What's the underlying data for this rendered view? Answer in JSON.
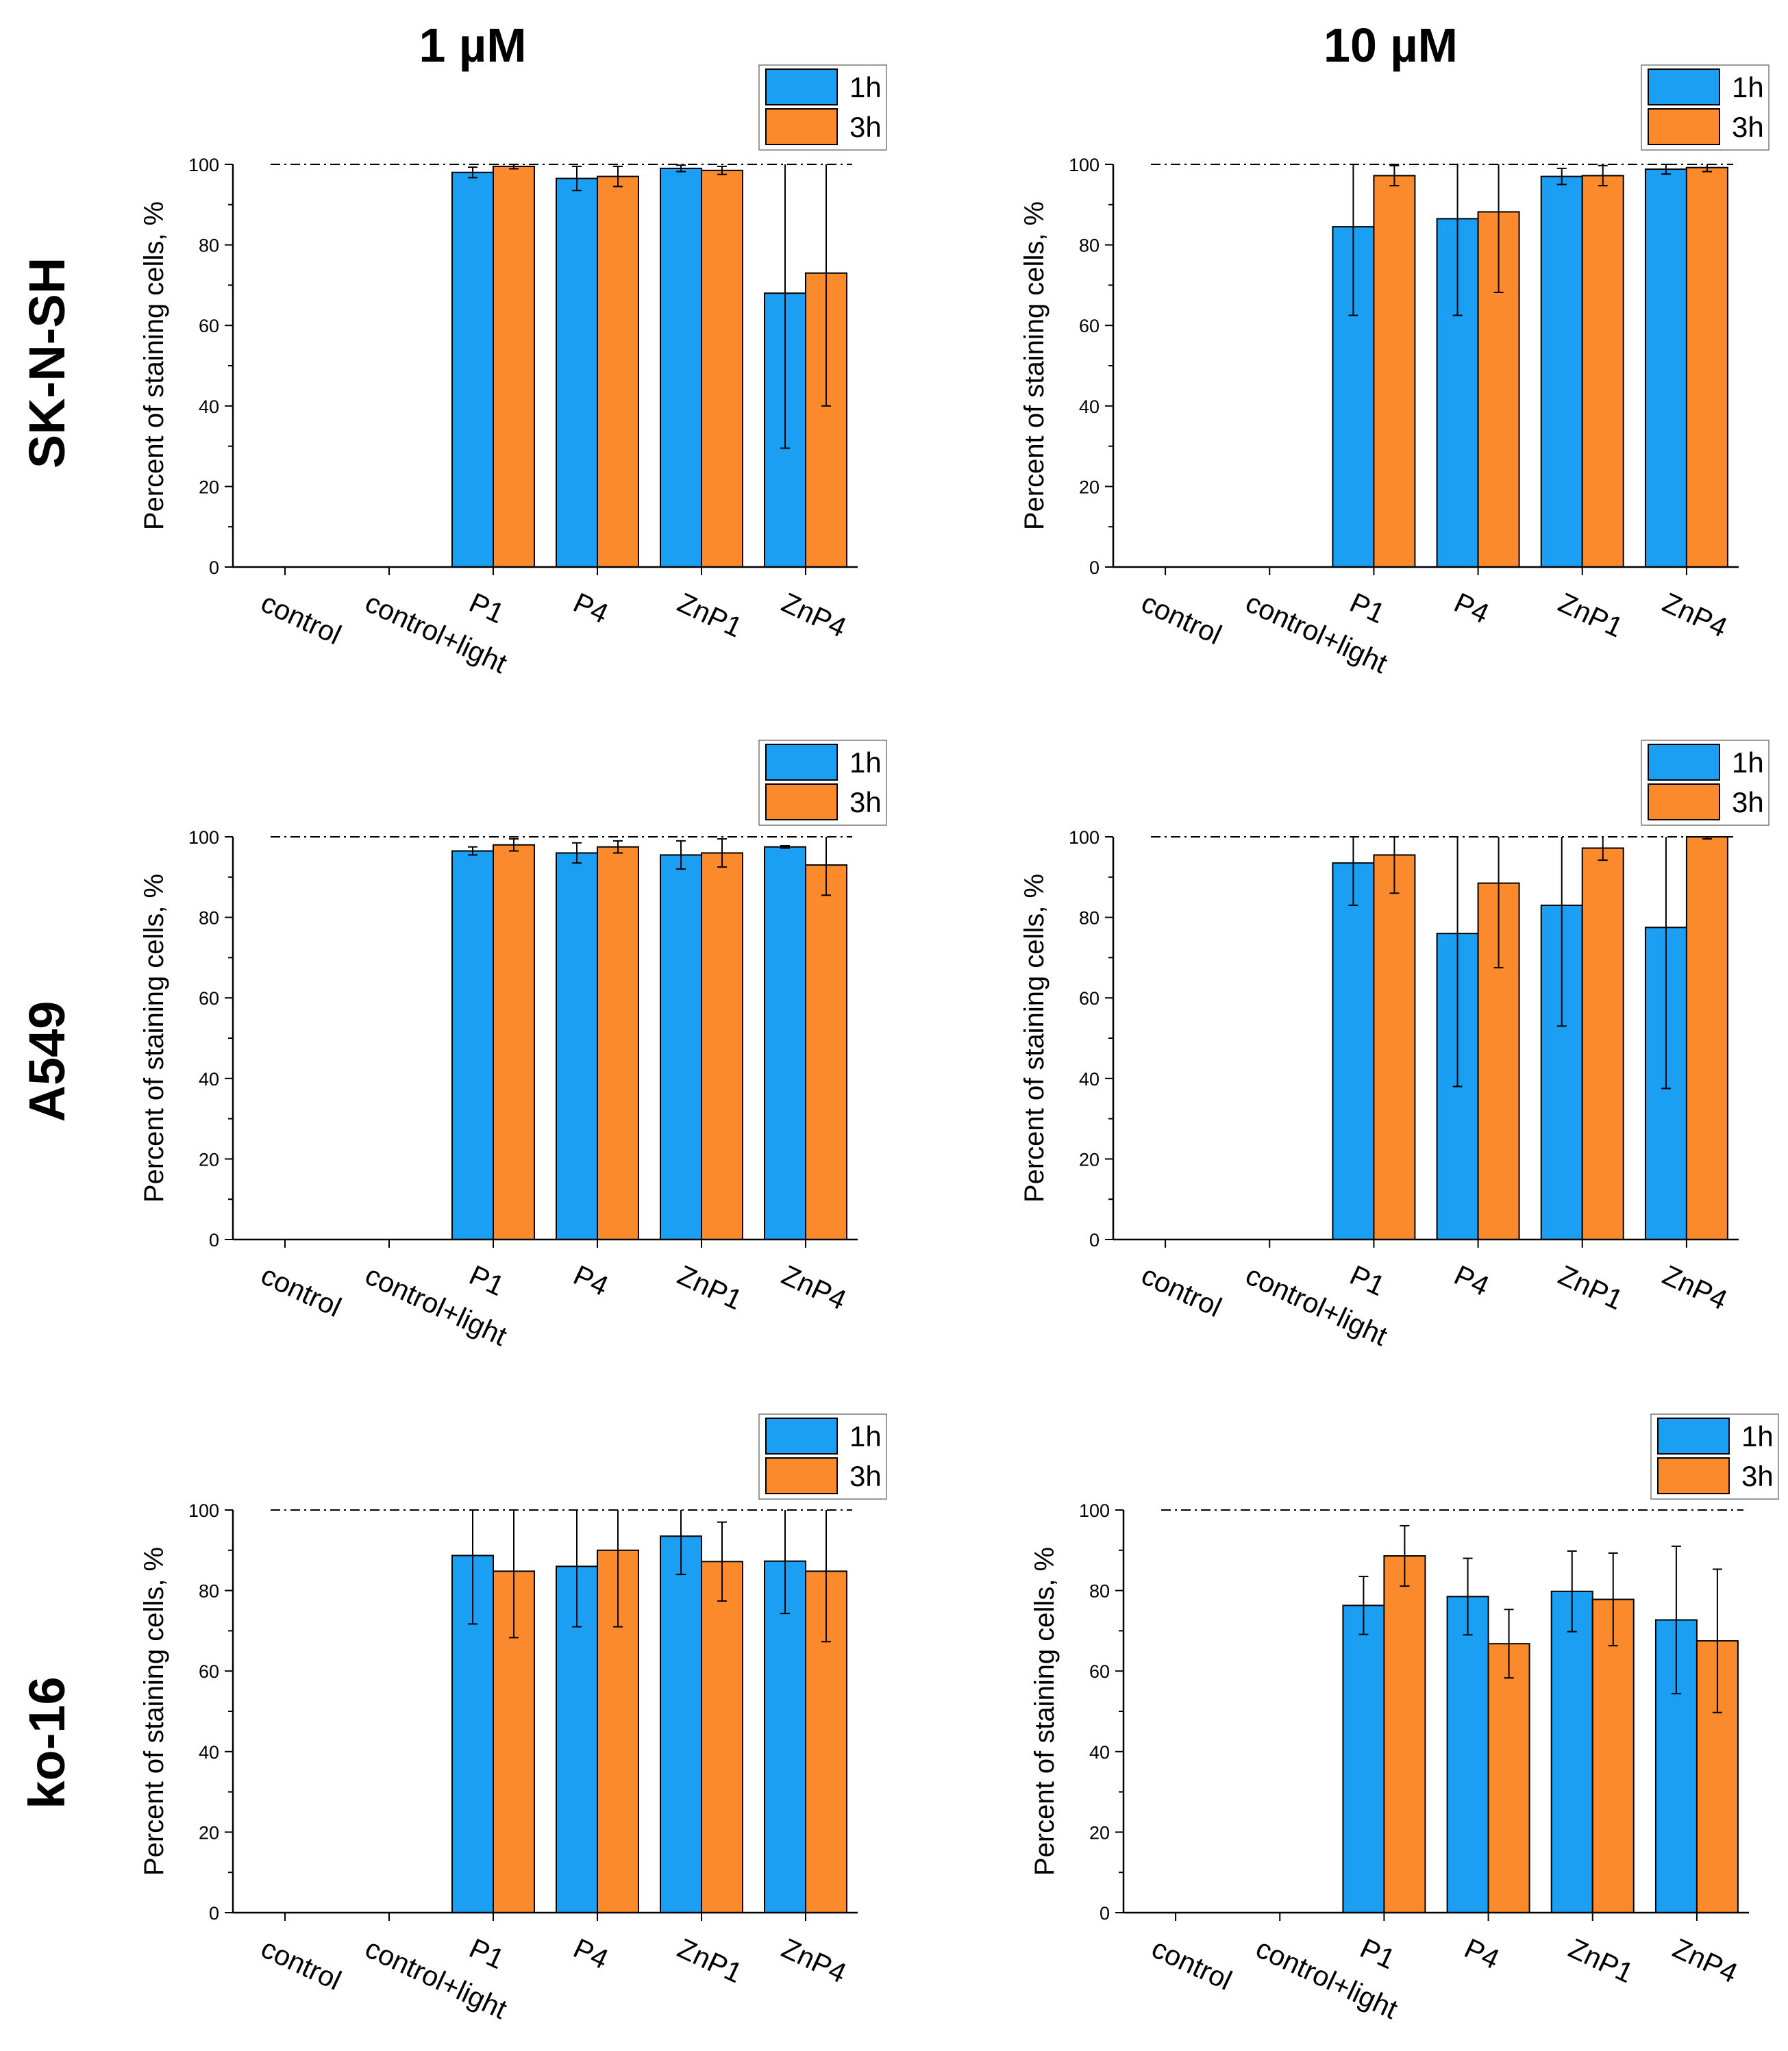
{
  "figure": {
    "column_titles": [
      "1 µM",
      "10 µM"
    ],
    "row_labels": [
      "SK-N-SH",
      "A549",
      "ko-16"
    ]
  },
  "chart_data": [
    {
      "type": "bar",
      "row": "SK-N-SH",
      "concentration": "1 µM",
      "categories": [
        "control",
        "control+light",
        "P1",
        "P4",
        "ZnP1",
        "ZnP4"
      ],
      "series": [
        {
          "name": "1h",
          "color": "#1a9ff2",
          "values": [
            0,
            0,
            98,
            96.5,
            99,
            68
          ],
          "errors": [
            0,
            0,
            1.3,
            3,
            0.8,
            38.5
          ]
        },
        {
          "name": "3h",
          "color": "#fb8a2c",
          "values": [
            0,
            0,
            99.5,
            97,
            98.5,
            73
          ],
          "errors": [
            0,
            0,
            0.6,
            2.5,
            1,
            33
          ]
        }
      ],
      "ylabel": "Percent of staining cells, %",
      "ylim": [
        0,
        100
      ],
      "yticks": [
        0,
        20,
        40,
        60,
        80,
        100
      ],
      "reference_line": 100,
      "legend": "top-right"
    },
    {
      "type": "bar",
      "row": "SK-N-SH",
      "concentration": "10 µM",
      "categories": [
        "control",
        "control+light",
        "P1",
        "P4",
        "ZnP1",
        "ZnP4"
      ],
      "series": [
        {
          "name": "1h",
          "color": "#1a9ff2",
          "values": [
            0,
            0,
            84.5,
            86.5,
            97,
            98.8
          ],
          "errors": [
            0,
            0,
            22,
            24,
            2,
            1.2
          ]
        },
        {
          "name": "3h",
          "color": "#fb8a2c",
          "values": [
            0,
            0,
            97.2,
            88.2,
            97.2,
            99.2
          ],
          "errors": [
            0,
            0,
            2.5,
            20,
            2.5,
            1
          ]
        }
      ],
      "ylabel": "Percent of staining cells, %",
      "ylim": [
        0,
        100
      ],
      "yticks": [
        0,
        20,
        40,
        60,
        80,
        100
      ],
      "reference_line": 100,
      "legend": "top-right"
    },
    {
      "type": "bar",
      "row": "A549",
      "concentration": "1 µM",
      "categories": [
        "control",
        "control+light",
        "P1",
        "P4",
        "ZnP1",
        "ZnP4"
      ],
      "series": [
        {
          "name": "1h",
          "color": "#1a9ff2",
          "values": [
            0,
            0,
            96.5,
            96,
            95.5,
            97.5
          ],
          "errors": [
            0,
            0,
            1,
            2.5,
            3.5,
            0.3
          ]
        },
        {
          "name": "3h",
          "color": "#fb8a2c",
          "values": [
            0,
            0,
            98,
            97.5,
            96,
            93
          ],
          "errors": [
            0,
            0,
            1.5,
            1.5,
            3.5,
            7.5
          ]
        }
      ],
      "ylabel": "Percent of staining cells, %",
      "ylim": [
        0,
        100
      ],
      "yticks": [
        0,
        20,
        40,
        60,
        80,
        100
      ],
      "reference_line": 100,
      "legend": "top-right"
    },
    {
      "type": "bar",
      "row": "A549",
      "concentration": "10 µM",
      "categories": [
        "control",
        "control+light",
        "P1",
        "P4",
        "ZnP1",
        "ZnP4"
      ],
      "series": [
        {
          "name": "1h",
          "color": "#1a9ff2",
          "values": [
            0,
            0,
            93.5,
            76,
            83,
            77.5
          ],
          "errors": [
            0,
            0,
            10.5,
            38,
            30,
            40
          ]
        },
        {
          "name": "3h",
          "color": "#fb8a2c",
          "values": [
            0,
            0,
            95.5,
            88.5,
            97.2,
            100
          ],
          "errors": [
            0,
            0,
            9.5,
            21,
            3,
            0.5
          ]
        }
      ],
      "ylabel": "Percent of staining cells, %",
      "ylim": [
        0,
        100
      ],
      "yticks": [
        0,
        20,
        40,
        60,
        80,
        100
      ],
      "reference_line": 100,
      "legend": "top-right"
    },
    {
      "type": "bar",
      "row": "ko-16",
      "concentration": "1 µM",
      "categories": [
        "control",
        "control+light",
        "P1",
        "P4",
        "ZnP1",
        "ZnP4"
      ],
      "series": [
        {
          "name": "1h",
          "color": "#1a9ff2",
          "values": [
            0,
            0,
            88.7,
            86,
            93.5,
            87.3
          ],
          "errors": [
            0,
            0,
            17,
            15,
            9.5,
            13
          ]
        },
        {
          "name": "3h",
          "color": "#fb8a2c",
          "values": [
            0,
            0,
            84.8,
            90,
            87.2,
            84.8
          ],
          "errors": [
            0,
            0,
            16.5,
            19,
            9.8,
            17.5
          ]
        }
      ],
      "ylabel": "Percent of staining cells, %",
      "ylim": [
        0,
        100
      ],
      "yticks": [
        0,
        20,
        40,
        60,
        80,
        100
      ],
      "reference_line": 100,
      "legend": "top-right"
    },
    {
      "type": "bar",
      "row": "ko-16",
      "concentration": "10 µM",
      "categories": [
        "control",
        "control+light",
        "P1",
        "P4",
        "ZnP1",
        "ZnP4"
      ],
      "series": [
        {
          "name": "1h",
          "color": "#1a9ff2",
          "values": [
            0,
            0,
            76.3,
            78.5,
            79.8,
            72.7
          ],
          "errors": [
            0,
            0,
            7.2,
            9.5,
            10,
            18.3
          ]
        },
        {
          "name": "3h",
          "color": "#fb8a2c",
          "values": [
            0,
            0,
            88.6,
            66.8,
            77.8,
            67.5
          ],
          "errors": [
            0,
            0,
            7.5,
            8.5,
            11.5,
            17.8
          ]
        }
      ],
      "ylabel": "Percent of staining cells, %",
      "ylim": [
        0,
        100
      ],
      "yticks": [
        0,
        20,
        40,
        60,
        80,
        100
      ],
      "reference_line": 100,
      "legend": "top-right"
    }
  ]
}
